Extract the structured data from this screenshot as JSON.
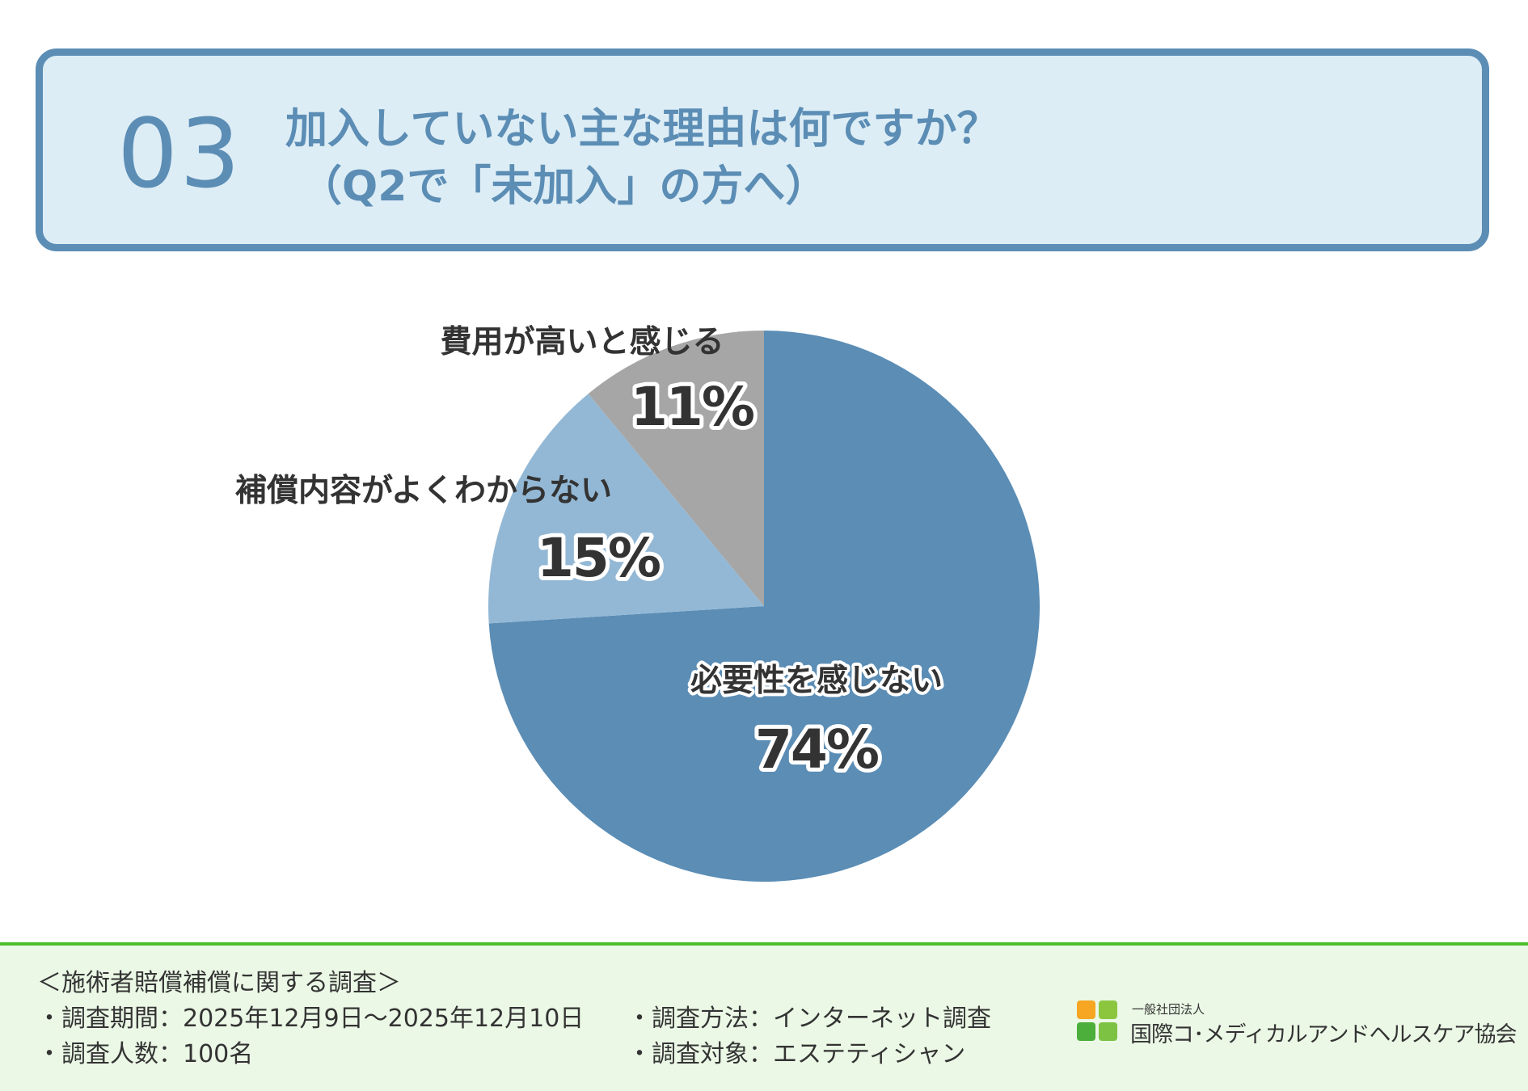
{
  "header": {
    "number": "03",
    "title_line1": "加入していない主な理由は何ですか？",
    "title_line2": "（Q2で「未加入」の方へ）"
  },
  "chart_data": {
    "type": "pie",
    "start_angle_deg": 0,
    "direction": "clockwise",
    "slices": [
      {
        "label": "必要性を感じない",
        "value": 74,
        "pct_label": "74%",
        "color": "#5b8db5"
      },
      {
        "label": "補償内容がよくわからない",
        "value": 15,
        "pct_label": "15%",
        "color": "#93b8d5"
      },
      {
        "label": "費用が高いと感じる",
        "value": 11,
        "pct_label": "11%",
        "color": "#a6a6a6"
      }
    ]
  },
  "footer": {
    "survey_title": "＜施術者賠償補償に関する調査＞",
    "period": "・調査期間：2025年12月9日〜2025年12月10日",
    "count": "・調査人数：100名",
    "method": "・調査方法：インターネット調査",
    "target": "・調査対象：エステティシャン",
    "org_sub": "一般社団法人",
    "org_name": "国際コ･メディカルアンドヘルスケア協会",
    "logo_colors": [
      "#f6a623",
      "#8cc63f",
      "#4cae3b",
      "#7dc242"
    ]
  }
}
